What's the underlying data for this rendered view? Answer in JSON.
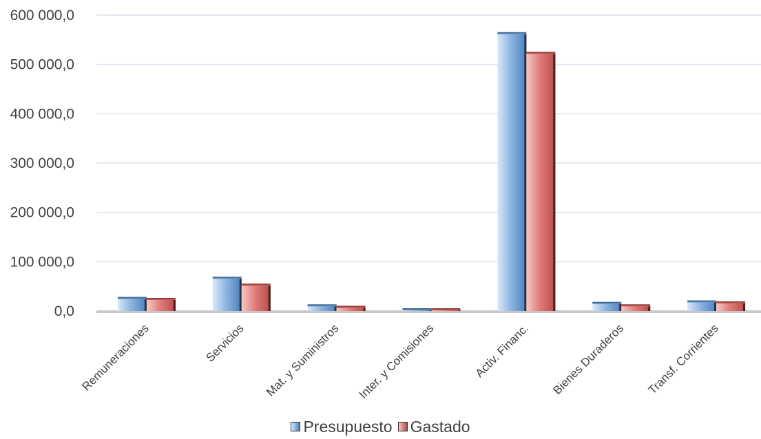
{
  "chart_data": {
    "type": "bar",
    "categories": [
      "Remuneraciones",
      "Servicios",
      "Mat. y Suministros",
      "Inter. y Comisiones",
      "Activ. Financ.",
      "Bienes Duraderos",
      "Transf. Corrientes"
    ],
    "series": [
      {
        "name": "Presupuesto",
        "color": "#5b9bd5",
        "values": [
          25000,
          66000,
          10000,
          1000,
          562000,
          15000,
          18000
        ]
      },
      {
        "name": "Gastado",
        "color": "#e06666",
        "values": [
          23000,
          52000,
          7000,
          300,
          522000,
          10000,
          16000
        ]
      }
    ],
    "y_ticks": [
      "0,0",
      "100 000,0",
      "200 000,0",
      "300 000,0",
      "400 000,0",
      "500 000,0",
      "600 000,0"
    ],
    "ylim": [
      0,
      600000
    ],
    "grid": true,
    "legend_position": "bottom"
  }
}
